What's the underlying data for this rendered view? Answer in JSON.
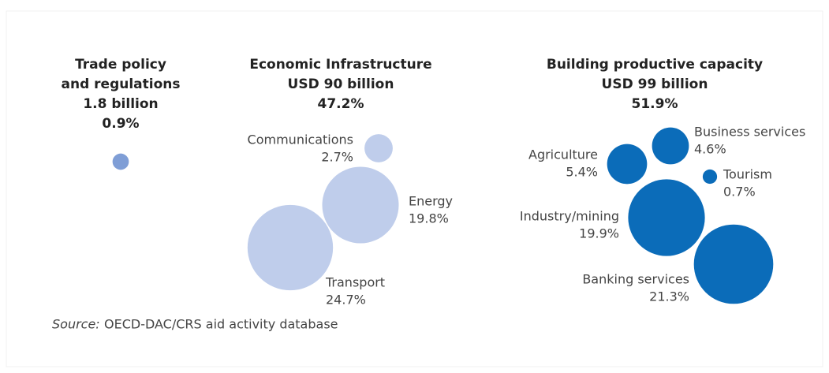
{
  "chart_data": {
    "type": "bubble",
    "groups": [
      {
        "title_lines": [
          "Trade policy",
          "and regulations",
          "1.8 billion"
        ],
        "value": 0.9,
        "value_label": "0.9%",
        "color": "#7f9ed6",
        "bubbles": []
      },
      {
        "title_lines": [
          "Economic Infrastructure",
          "USD 90 billion"
        ],
        "value": 47.2,
        "value_label": "47.2%",
        "color": "#bfcdeb",
        "bubbles": [
          {
            "name": "Communications",
            "value": 2.7,
            "value_label": "2.7%"
          },
          {
            "name": "Energy",
            "value": 19.8,
            "value_label": "19.8%"
          },
          {
            "name": "Transport",
            "value": 24.7,
            "value_label": "24.7%"
          }
        ]
      },
      {
        "title_lines": [
          "Building productive capacity",
          "USD 99 billion"
        ],
        "value": 51.9,
        "value_label": "51.9%",
        "color": "#0b6cb9",
        "bubbles": [
          {
            "name": "Agriculture",
            "value": 5.4,
            "value_label": "5.4%"
          },
          {
            "name": "Business services",
            "value": 4.6,
            "value_label": "4.6%"
          },
          {
            "name": "Tourism",
            "value": 0.7,
            "value_label": "0.7%"
          },
          {
            "name": "Industry/mining",
            "value": 19.9,
            "value_label": "19.9%"
          },
          {
            "name": "Banking services",
            "value": 21.3,
            "value_label": "21.3%"
          }
        ]
      }
    ],
    "source_label": "Source:",
    "source": "OECD-DAC/CRS aid activity database"
  }
}
